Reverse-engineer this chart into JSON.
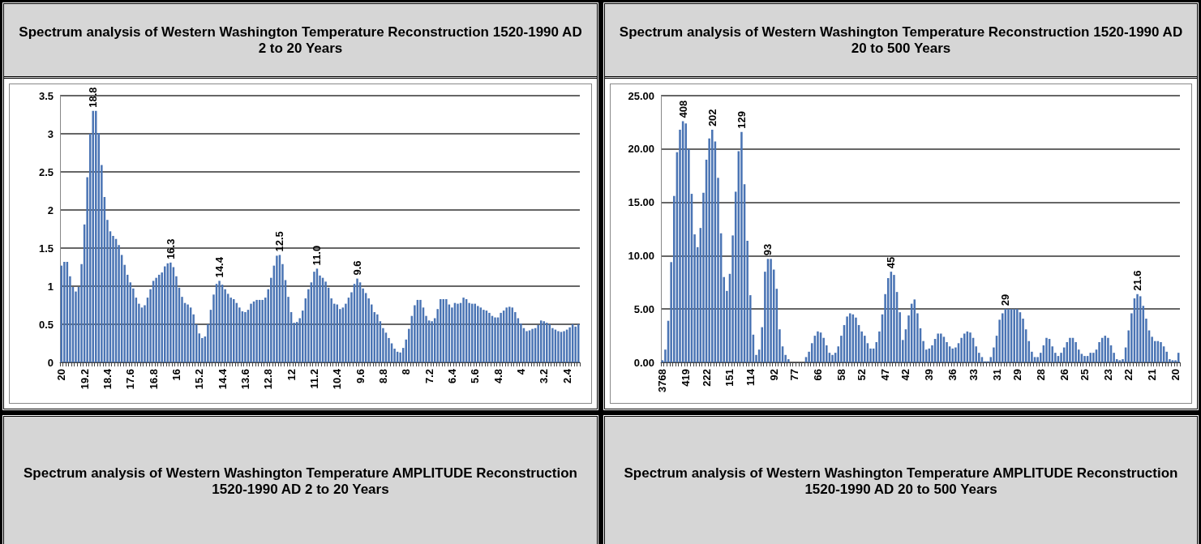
{
  "chart_data": [
    {
      "type": "bar",
      "title": "Spectrum analysis of Western Washington Temperature Reconstruction 1520-1990 AD 2 to 20 Years",
      "color": "#4a74b4",
      "ylim": [
        0,
        3.5
      ],
      "yticks": [
        0,
        0.5,
        1,
        1.5,
        2,
        2.5,
        3,
        3.5
      ],
      "grid": "y",
      "categories": [
        "20",
        null,
        null,
        null,
        null,
        null,
        null,
        null,
        "19.2",
        null,
        null,
        null,
        null,
        null,
        null,
        null,
        "18.4",
        null,
        null,
        null,
        null,
        null,
        null,
        null,
        "17.6",
        null,
        null,
        null,
        null,
        null,
        null,
        null,
        "16.8",
        null,
        null,
        null,
        null,
        null,
        null,
        null,
        "16",
        null,
        null,
        null,
        null,
        null,
        null,
        null,
        "15.2",
        null,
        null,
        null,
        null,
        null,
        null,
        null,
        "14.4",
        null,
        null,
        null,
        null,
        null,
        null,
        null,
        "13.6",
        null,
        null,
        null,
        null,
        null,
        null,
        null,
        "12.8",
        null,
        null,
        null,
        null,
        null,
        null,
        null,
        "12",
        null,
        null,
        null,
        null,
        null,
        null,
        null,
        "11.2",
        null,
        null,
        null,
        null,
        null,
        null,
        null,
        "10.4",
        null,
        null,
        null,
        null,
        null,
        null,
        null,
        "9.6",
        null,
        null,
        null,
        null,
        null,
        null,
        null,
        "8.8",
        null,
        null,
        null,
        null,
        null,
        null,
        null,
        "8",
        null,
        null,
        null,
        null,
        null,
        null,
        null,
        "7.2",
        null,
        null,
        null,
        null,
        null,
        null,
        null,
        "6.4",
        null,
        null,
        null,
        null,
        null,
        null,
        null,
        "5.6",
        null,
        null,
        null,
        null,
        null,
        null,
        null,
        "4.8",
        null,
        null,
        null,
        null,
        null,
        null,
        null,
        "4",
        null,
        null,
        null,
        null,
        null,
        null,
        null,
        "3.2",
        null,
        null,
        null,
        null,
        null,
        null,
        null,
        "2.4",
        null,
        null,
        null,
        null
      ],
      "values": [
        1.27,
        1.32,
        1.32,
        1.13,
        0.99,
        0.93,
        0.99,
        1.29,
        1.81,
        2.43,
        3.0,
        3.3,
        3.3,
        3.01,
        2.59,
        2.17,
        1.87,
        1.72,
        1.66,
        1.62,
        1.54,
        1.41,
        1.28,
        1.15,
        1.05,
        0.97,
        0.85,
        0.77,
        0.72,
        0.75,
        0.85,
        0.96,
        1.07,
        1.11,
        1.15,
        1.18,
        1.26,
        1.3,
        1.31,
        1.25,
        1.13,
        0.98,
        0.86,
        0.78,
        0.76,
        0.72,
        0.63,
        0.5,
        0.38,
        0.32,
        0.34,
        0.5,
        0.69,
        0.89,
        1.03,
        1.07,
        1.02,
        0.96,
        0.9,
        0.85,
        0.83,
        0.78,
        0.72,
        0.67,
        0.66,
        0.69,
        0.77,
        0.8,
        0.82,
        0.82,
        0.82,
        0.85,
        0.96,
        1.11,
        1.27,
        1.4,
        1.41,
        1.29,
        1.08,
        0.86,
        0.66,
        0.52,
        0.53,
        0.58,
        0.68,
        0.84,
        0.96,
        1.05,
        1.19,
        1.23,
        1.14,
        1.11,
        1.06,
        0.98,
        0.84,
        0.77,
        0.76,
        0.7,
        0.72,
        0.77,
        0.85,
        0.92,
        1.03,
        1.1,
        1.05,
        0.97,
        0.91,
        0.84,
        0.76,
        0.66,
        0.63,
        0.54,
        0.45,
        0.39,
        0.32,
        0.25,
        0.18,
        0.14,
        0.13,
        0.19,
        0.3,
        0.44,
        0.61,
        0.75,
        0.82,
        0.82,
        0.72,
        0.61,
        0.55,
        0.54,
        0.58,
        0.7,
        0.83,
        0.83,
        0.83,
        0.76,
        0.72,
        0.78,
        0.77,
        0.78,
        0.85,
        0.83,
        0.78,
        0.77,
        0.77,
        0.74,
        0.72,
        0.69,
        0.68,
        0.65,
        0.61,
        0.59,
        0.59,
        0.65,
        0.68,
        0.72,
        0.73,
        0.72,
        0.66,
        0.58,
        0.51,
        0.45,
        0.41,
        0.42,
        0.44,
        0.45,
        0.49,
        0.55,
        0.54,
        0.52,
        0.5,
        0.45,
        0.43,
        0.41,
        0.4,
        0.41,
        0.43,
        0.46,
        0.5,
        0.47,
        0.5
      ],
      "annotations": [
        {
          "text": "18.8",
          "y": 3.3
        },
        {
          "text": "16.3",
          "y": 1.31
        },
        {
          "text": "14.4",
          "y": 1.07
        },
        {
          "text": "12.5",
          "y": 1.41
        },
        {
          "text": "11.0",
          "y": 1.23
        },
        {
          "text": "9.6",
          "y": 1.1
        }
      ]
    },
    {
      "type": "bar",
      "title": "Spectrum analysis of Western Washington Temperature Reconstruction 1520-1990 AD 20 to 500 Years",
      "color": "#4a74b4",
      "ylim": [
        0,
        25
      ],
      "yticks": [
        {
          "value": 0,
          "label": "0.00"
        },
        {
          "value": 5,
          "label": "5.00"
        },
        {
          "value": 10,
          "label": "10.00"
        },
        {
          "value": 15,
          "label": "15.00"
        },
        {
          "value": 20,
          "label": "20.00"
        },
        {
          "value": 25,
          "label": "25.00"
        }
      ],
      "grid": "y",
      "categories": [
        "3768",
        null,
        null,
        null,
        null,
        null,
        null,
        null,
        "419",
        null,
        null,
        null,
        null,
        null,
        null,
        "222",
        null,
        null,
        null,
        null,
        null,
        null,
        null,
        "151",
        null,
        null,
        null,
        null,
        null,
        null,
        "114",
        null,
        null,
        null,
        null,
        null,
        null,
        null,
        "92",
        null,
        null,
        null,
        null,
        null,
        null,
        "77",
        null,
        null,
        null,
        null,
        null,
        null,
        null,
        "66",
        null,
        null,
        null,
        null,
        null,
        null,
        null,
        "58",
        null,
        null,
        null,
        null,
        null,
        null,
        "52",
        null,
        null,
        null,
        null,
        null,
        null,
        null,
        "47",
        null,
        null,
        null,
        null,
        null,
        null,
        "42",
        null,
        null,
        null,
        null,
        null,
        null,
        null,
        "39",
        null,
        null,
        null,
        null,
        null,
        null,
        null,
        "36",
        null,
        null,
        null,
        null,
        null,
        null,
        "33",
        null,
        null,
        null,
        null,
        null,
        null,
        null,
        "31",
        null,
        null,
        null,
        null,
        null,
        null,
        "29",
        null,
        null,
        null,
        null,
        null,
        null,
        null,
        "28",
        null,
        null,
        null,
        null,
        null,
        null,
        null,
        "26",
        null,
        null,
        null,
        null,
        null,
        null,
        "25",
        null,
        null,
        null,
        null,
        null,
        null,
        null,
        "23",
        null,
        null,
        null,
        null,
        null,
        null,
        "22",
        null,
        null,
        null,
        null,
        null,
        null,
        null,
        "21",
        null,
        null,
        null,
        null,
        null,
        null,
        null,
        "20",
        null
      ],
      "values": [
        0.2,
        1.2,
        3.9,
        9.4,
        15.6,
        19.7,
        21.8,
        22.6,
        22.4,
        20.0,
        15.8,
        12.0,
        10.8,
        12.6,
        15.9,
        19.0,
        21.0,
        21.8,
        20.7,
        17.3,
        12.1,
        8.0,
        6.7,
        8.3,
        11.9,
        16.0,
        19.8,
        21.6,
        16.7,
        11.4,
        6.3,
        2.6,
        0.7,
        1.2,
        3.3,
        8.5,
        9.7,
        9.7,
        8.7,
        6.9,
        3.1,
        1.5,
        0.7,
        0.3,
        0,
        0,
        0,
        0,
        0,
        0.5,
        1.0,
        1.8,
        2.5,
        2.9,
        2.8,
        2.3,
        1.6,
        0.9,
        0.7,
        0.9,
        1.5,
        2.5,
        3.5,
        4.3,
        4.6,
        4.5,
        4.2,
        3.5,
        2.9,
        2.5,
        1.8,
        1.3,
        1.3,
        1.9,
        2.9,
        4.5,
        6.4,
        7.9,
        8.5,
        8.2,
        6.6,
        4.7,
        2.1,
        3.1,
        4.4,
        5.5,
        5.9,
        4.6,
        3.2,
        2.0,
        1.2,
        1.3,
        1.6,
        2.2,
        2.7,
        2.7,
        2.4,
        1.9,
        1.5,
        1.3,
        1.4,
        1.8,
        2.3,
        2.7,
        2.9,
        2.8,
        2.3,
        1.5,
        0.9,
        0.5,
        0.1,
        0.1,
        0.5,
        1.4,
        2.5,
        4.0,
        4.6,
        5.0,
        5.0,
        5.0,
        5.0,
        5.0,
        4.7,
        4.1,
        3.1,
        2.0,
        1.0,
        0.5,
        0.5,
        0.9,
        1.6,
        2.3,
        2.2,
        1.5,
        0.9,
        0.6,
        0.9,
        1.4,
        1.9,
        2.3,
        2.3,
        1.9,
        1.2,
        0.8,
        0.6,
        0.6,
        0.9,
        0.9,
        1.2,
        1.9,
        2.3,
        2.5,
        2.3,
        1.6,
        0.9,
        0.3,
        0.2,
        0.3,
        1.4,
        3.0,
        4.6,
        6.0,
        6.4,
        6.2,
        5.3,
        4.1,
        3.0,
        2.4,
        2.0,
        2.0,
        1.9,
        1.5,
        1.0,
        0.3,
        0.2,
        0.2,
        0.9
      ],
      "annotations": [
        {
          "text": "408",
          "y": 22.6
        },
        {
          "text": "202",
          "y": 21.8
        },
        {
          "text": "129",
          "y": 21.6
        },
        {
          "text": "93",
          "y": 9.7
        },
        {
          "text": "45",
          "y": 8.5
        },
        {
          "text": "29",
          "y": 5.0
        },
        {
          "text": "21.6",
          "y": 6.4
        }
      ]
    },
    {
      "type": "other",
      "title": "Spectrum analysis of Western Washington Temperature AMPLITUDE Reconstruction 1520-1990 AD 2 to 20 Years"
    },
    {
      "type": "other",
      "title": "Spectrum analysis of Western Washington Temperature AMPLITUDE Reconstruction 1520-1990 AD 20 to 500 Years"
    }
  ]
}
